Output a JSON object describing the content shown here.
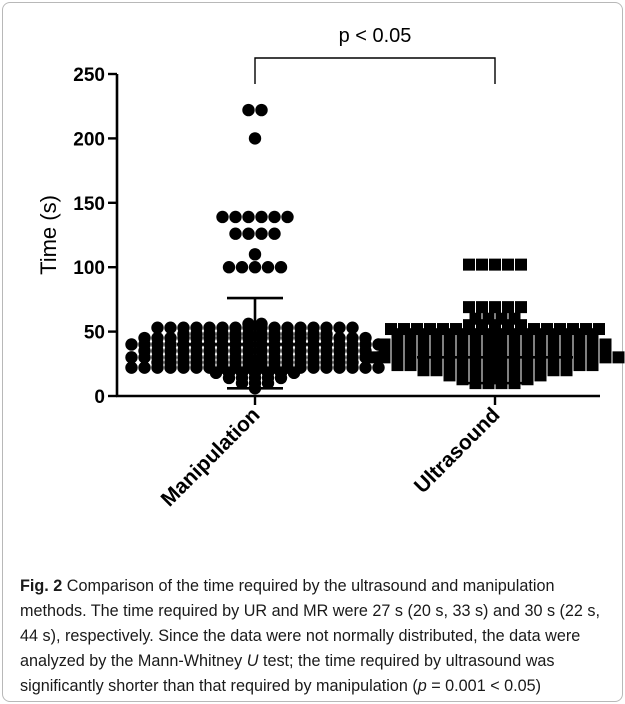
{
  "chart_data": {
    "type": "scatter",
    "ylabel": "Time (s)",
    "ylim": [
      0,
      250
    ],
    "yticks": [
      0,
      50,
      100,
      150,
      200,
      250
    ],
    "categories": [
      "Manipulation",
      "Ultrasound"
    ],
    "significance": "p < 0.05",
    "series": [
      {
        "category": "Manipulation",
        "marker": "circle",
        "summary": {
          "mean": 40,
          "mean_minus_sd": 6,
          "mean_plus_sd": 76
        },
        "values": [
          222,
          222,
          200,
          139,
          139,
          139,
          139,
          139,
          139,
          126,
          126,
          126,
          126,
          110,
          100,
          100,
          100,
          100,
          100,
          56,
          56,
          53,
          53,
          53,
          53,
          53,
          53,
          53,
          53,
          53,
          53,
          53,
          53,
          53,
          53,
          53,
          53,
          48,
          48,
          48,
          48,
          48,
          48,
          48,
          48,
          48,
          48,
          48,
          48,
          45,
          45,
          45,
          45,
          45,
          45,
          45,
          45,
          45,
          45,
          45,
          45,
          45,
          45,
          45,
          45,
          45,
          45,
          40,
          40,
          40,
          40,
          40,
          40,
          40,
          40,
          40,
          40,
          40,
          40,
          40,
          40,
          40,
          40,
          40,
          40,
          40,
          40,
          35,
          35,
          35,
          35,
          35,
          35,
          35,
          35,
          35,
          35,
          35,
          35,
          35,
          35,
          35,
          35,
          35,
          35,
          30,
          30,
          30,
          30,
          30,
          30,
          30,
          30,
          30,
          30,
          30,
          30,
          30,
          30,
          30,
          30,
          30,
          30,
          30,
          30,
          26,
          26,
          26,
          26,
          26,
          26,
          26,
          26,
          26,
          26,
          26,
          26,
          26,
          26,
          26,
          26,
          22,
          22,
          22,
          22,
          22,
          22,
          22,
          22,
          22,
          22,
          22,
          22,
          22,
          22,
          22,
          22,
          22,
          22,
          22,
          22,
          18,
          18,
          18,
          18,
          18,
          18,
          18,
          14,
          14,
          14,
          14,
          14,
          10,
          10,
          10,
          6
        ]
      },
      {
        "category": "Ultrasound",
        "marker": "square",
        "summary": {
          "mean": 30,
          "mean_minus_sd": 10,
          "mean_plus_sd": 50
        },
        "values": [
          102,
          102,
          102,
          102,
          102,
          69,
          69,
          69,
          69,
          69,
          60,
          60,
          60,
          60,
          55,
          55,
          55,
          55,
          55,
          52,
          52,
          52,
          52,
          52,
          52,
          52,
          52,
          52,
          52,
          52,
          52,
          52,
          52,
          52,
          52,
          52,
          48,
          48,
          48,
          48,
          48,
          48,
          48,
          48,
          48,
          48,
          48,
          48,
          48,
          48,
          48,
          48,
          44,
          44,
          44,
          44,
          44,
          44,
          44,
          44,
          44,
          44,
          44,
          44,
          40,
          40,
          40,
          40,
          40,
          40,
          40,
          40,
          40,
          40,
          40,
          40,
          40,
          40,
          40,
          40,
          40,
          40,
          36,
          36,
          36,
          36,
          36,
          36,
          36,
          36,
          36,
          36,
          36,
          36,
          36,
          36,
          36,
          36,
          36,
          36,
          33,
          33,
          33,
          33,
          33,
          33,
          33,
          33,
          33,
          33,
          33,
          33,
          33,
          33,
          33,
          33,
          30,
          30,
          30,
          30,
          30,
          30,
          30,
          30,
          30,
          30,
          30,
          30,
          30,
          30,
          30,
          30,
          30,
          30,
          30,
          30,
          27,
          27,
          27,
          27,
          27,
          27,
          27,
          27,
          27,
          27,
          27,
          27,
          27,
          27,
          27,
          27,
          24,
          24,
          24,
          24,
          24,
          24,
          24,
          24,
          24,
          24,
          24,
          24,
          24,
          24,
          24,
          24,
          20,
          20,
          20,
          20,
          20,
          20,
          20,
          20,
          20,
          20,
          20,
          20,
          16,
          16,
          16,
          16,
          16,
          16,
          16,
          16,
          13,
          13,
          13,
          13,
          13,
          13,
          10,
          10,
          10,
          10
        ]
      }
    ]
  },
  "caption": {
    "fig_label": "Fig. 2",
    "text_1": " Comparison of the time required by the ultrasound and manipulation methods. The time required by UR and MR were 27 s (20 s, 33 s) and 30 s (22 s, 44 s), respectively. Since the data were not normally distributed, the data were analyzed by the Mann-Whitney ",
    "u_italic": "U",
    "text_2": " test; the time required by ultrasound was significantly shorter than that required by manipulation (",
    "p_italic": "p",
    "text_3": " = 0.001 < 0.05)"
  },
  "colors": {
    "ink": "#000000",
    "caption": "#1a1a1a",
    "frame": "#b8b8b8"
  }
}
